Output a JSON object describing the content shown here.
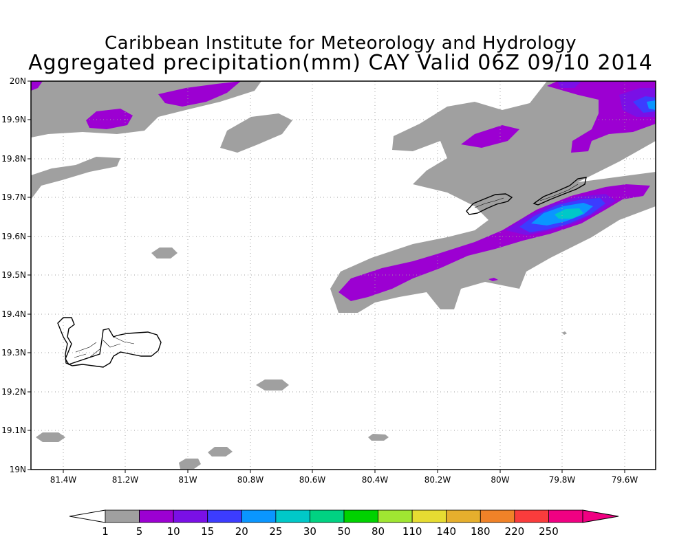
{
  "title_line1": "Caribbean Institute for Meteorology and Hydrology",
  "title_line2": "Aggregated precipitation(mm) CAY Valid 06Z 09/10 2014",
  "map": {
    "lon_range": [
      -81.5,
      -79.5
    ],
    "lat_range": [
      19.0,
      20.0
    ],
    "grid": true,
    "lon_ticks": [
      "81.4W",
      "81.2W",
      "81W",
      "80.8W",
      "80.6W",
      "80.4W",
      "80.2W",
      "80W",
      "79.8W",
      "79.6W"
    ],
    "lat_ticks": [
      "20N",
      "19.9N",
      "19.8N",
      "19.7N",
      "19.6N",
      "19.5N",
      "19.4N",
      "19.3N",
      "19.2N",
      "19.1N",
      "19N"
    ],
    "islands": [
      "Grand Cayman",
      "Little Cayman",
      "Cayman Brac"
    ]
  },
  "colorbar": {
    "labels": [
      "1",
      "5",
      "10",
      "15",
      "20",
      "25",
      "30",
      "50",
      "80",
      "110",
      "140",
      "180",
      "220",
      "250"
    ],
    "colors": [
      "#a0a0a0",
      "#9c00d2",
      "#7a10e6",
      "#3c3cff",
      "#0a96ff",
      "#00c8c8",
      "#00d282",
      "#00d200",
      "#a0e632",
      "#e6dc32",
      "#e6af2d",
      "#f08228",
      "#fa3c3c",
      "#f00082"
    ],
    "left_arrow_color": "#ffffff",
    "right_arrow_color": "#f00082"
  },
  "colors": {
    "light_rain": "#a0a0a0",
    "moderate": "#9c00d2",
    "heavy": "#3c3cff",
    "very_heavy": "#0a96ff",
    "peak": "#00c8c8"
  }
}
